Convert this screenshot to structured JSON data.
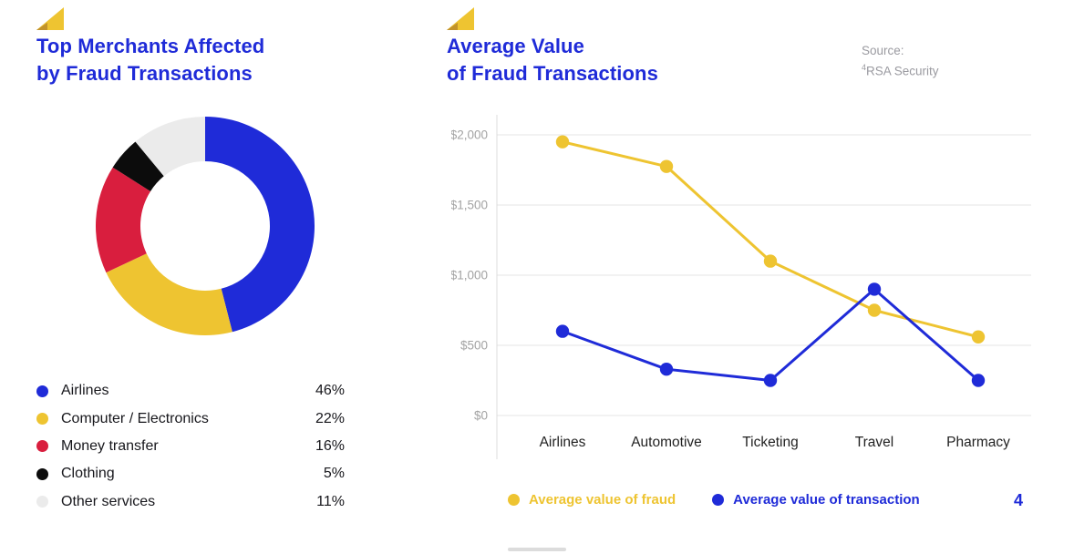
{
  "colors": {
    "blue": "#1f2bd8",
    "yellow": "#eec431",
    "yellow_dark": "#c2932c",
    "red": "#d91e3e",
    "black": "#0c0c0c",
    "light_gray": "#ebebeb",
    "grid": "#e5e5e5",
    "axis_text": "#a3a3a3",
    "text": "#17171c"
  },
  "left_panel": {
    "title_line1": "Top Merchants Affected",
    "title_line2": "by Fraud Transactions"
  },
  "right_panel": {
    "title_line1": "Average Value",
    "title_line2": "of Fraud Transactions",
    "source_label": "Source:",
    "source_sup": "4",
    "source_ref": "RSA Security",
    "page_number": "4"
  },
  "chart_data": [
    {
      "type": "pie",
      "donut": true,
      "title": "Top Merchants Affected by Fraud Transactions",
      "labels": [
        "Airlines",
        "Computer / Electronics",
        "Money transfer",
        "Clothing",
        "Other services"
      ],
      "values": [
        46,
        22,
        16,
        5,
        11
      ],
      "display_values": [
        "46%",
        "22%",
        "16%",
        "5%",
        "11%"
      ],
      "colors": [
        "#1f2bd8",
        "#eec431",
        "#d91e3e",
        "#0c0c0c",
        "#ebebeb"
      ],
      "start_angle_deg": -90,
      "direction": "clockwise"
    },
    {
      "type": "line",
      "title": "Average Value of Fraud Transactions",
      "categories": [
        "Airlines",
        "Automotive",
        "Ticketing",
        "Travel",
        "Pharmacy"
      ],
      "series": [
        {
          "name": "Average value of fraud",
          "color": "#eec431",
          "values": [
            1950,
            1775,
            1100,
            750,
            560
          ]
        },
        {
          "name": "Average value of transaction",
          "color": "#1f2bd8",
          "values": [
            600,
            330,
            250,
            900,
            250
          ]
        }
      ],
      "ylim": [
        0,
        2000
      ],
      "yticks": [
        0,
        500,
        1000,
        1500,
        2000
      ],
      "ytick_labels": [
        "$0",
        "$500",
        "$1,000",
        "$1,500",
        "$2,000"
      ],
      "grid": true,
      "legend_position": "bottom"
    }
  ]
}
